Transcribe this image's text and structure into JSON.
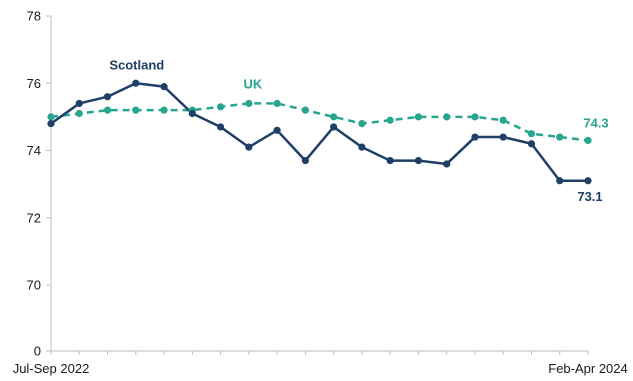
{
  "chart_data": {
    "type": "line",
    "xlabel": "",
    "ylabel": "",
    "ylim": [
      70,
      78
    ],
    "yticks": [
      70,
      72,
      74,
      76,
      78
    ],
    "axis_break_label": "0",
    "x_tick_labels": [
      "Jul-Sep 2022",
      "Feb-Apr 2024"
    ],
    "grid": false,
    "series": [
      {
        "name": "Scotland",
        "color": "#1f3f66",
        "dash": "solid",
        "values": [
          74.8,
          75.4,
          75.6,
          76.0,
          75.9,
          75.1,
          74.7,
          74.1,
          74.6,
          73.7,
          74.7,
          74.1,
          73.7,
          73.7,
          73.6,
          74.4,
          74.4,
          74.2,
          73.1,
          73.1
        ]
      },
      {
        "name": "UK",
        "color": "#27a58f",
        "dash": "dashed",
        "values": [
          75.0,
          75.1,
          75.2,
          75.2,
          75.2,
          75.2,
          75.3,
          75.4,
          75.4,
          75.2,
          75.0,
          74.8,
          74.9,
          75.0,
          75.0,
          75.0,
          74.9,
          74.5,
          74.4,
          74.3
        ]
      }
    ],
    "end_labels": [
      "73.1",
      "74.3"
    ]
  }
}
